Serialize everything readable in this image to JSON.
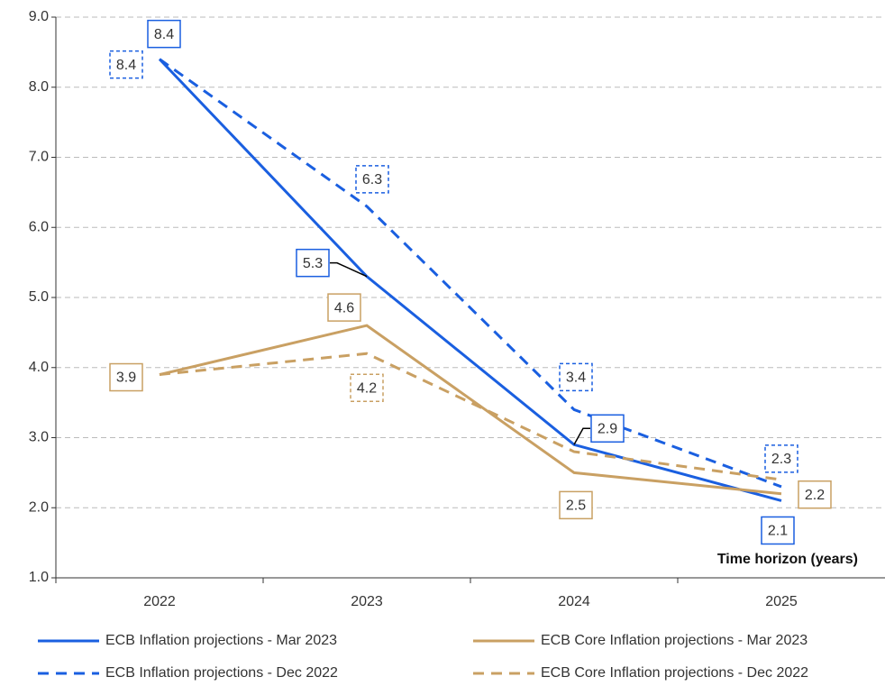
{
  "chart_data": {
    "type": "line",
    "categories": [
      "2022",
      "2023",
      "2024",
      "2025"
    ],
    "annotation": "Time horizon (years)",
    "series": [
      {
        "name": "ECB Inflation projections - Mar 2023",
        "color": "#1a5fe0",
        "line_style": "solid",
        "values": [
          8.4,
          5.3,
          2.9,
          2.1
        ],
        "value_labels": [
          "8.4",
          "5.3",
          "2.9",
          "2.1"
        ]
      },
      {
        "name": "ECB Core Inflation projections - Mar 2023",
        "color": "#c9a063",
        "line_style": "solid",
        "values": [
          3.9,
          4.6,
          2.5,
          2.2
        ],
        "value_labels": [
          "3.9",
          "4.6",
          "2.5",
          "2.2"
        ]
      },
      {
        "name": "ECB Inflation projections - Dec 2022",
        "color": "#1a5fe0",
        "line_style": "dashed",
        "values": [
          8.4,
          6.3,
          3.4,
          2.3
        ],
        "value_labels": [
          "8.4",
          "6.3",
          "3.4",
          "2.3"
        ]
      },
      {
        "name": "ECB Core Inflation projections - Dec 2022",
        "color": "#c9a063",
        "line_style": "dashed",
        "values": [
          3.9,
          4.2,
          2.8,
          2.4
        ],
        "value_labels": [
          null,
          "4.2",
          null,
          null
        ]
      }
    ],
    "ylim": [
      1,
      9
    ],
    "yticks": [
      {
        "value": 1,
        "label": "1.0"
      },
      {
        "value": 2,
        "label": "2.0"
      },
      {
        "value": 3,
        "label": "3.0"
      },
      {
        "value": 4,
        "label": "4.0"
      },
      {
        "value": 5,
        "label": "5.0"
      },
      {
        "value": 6,
        "label": "6.0"
      },
      {
        "value": 7,
        "label": "7.0"
      },
      {
        "value": 8,
        "label": "8.0"
      },
      {
        "value": 9,
        "label": "9.0"
      }
    ],
    "grid": true
  }
}
